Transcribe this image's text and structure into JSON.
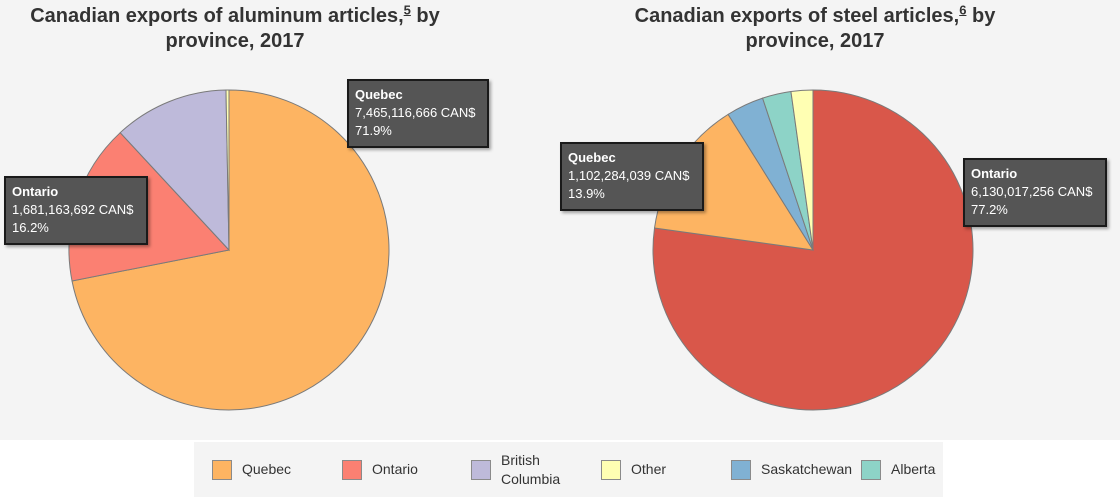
{
  "colors": {
    "quebec": "#fdb462",
    "ontario": "#fb8072",
    "ontario_steel": "#d9574a",
    "british_columbia": "#bebada",
    "other": "#ffffb3",
    "saskatchewan": "#80b1d3",
    "alberta": "#8dd3c7"
  },
  "chart_data": [
    {
      "type": "pie",
      "title": "Canadian exports of aluminum articles,",
      "title_footnote": "5",
      "title_suffix": " by",
      "title_line2": "province, 2017",
      "slices": [
        {
          "label": "Quebec",
          "value": 7465116666,
          "value_text": "7,465,116,666 CAN$",
          "percent": 71.9,
          "percent_text": "71.9%",
          "color": "#fdb462"
        },
        {
          "label": "Ontario",
          "value": 1681163692,
          "value_text": "1,681,163,692 CAN$",
          "percent": 16.2,
          "percent_text": "16.2%",
          "color": "#fb8072"
        },
        {
          "label": "British Columbia",
          "percent": 11.6,
          "color": "#bebada"
        },
        {
          "label": "Other",
          "percent": 0.3,
          "color": "#ffffb3"
        }
      ],
      "tooltips": [
        {
          "name": "Quebec",
          "value": "7,465,116,666 CAN$",
          "percent": "71.9%"
        },
        {
          "name": "Ontario",
          "value": "1,681,163,692 CAN$",
          "percent": "16.2%"
        }
      ]
    },
    {
      "type": "pie",
      "title": "Canadian exports of steel articles,",
      "title_footnote": "6",
      "title_suffix": " by",
      "title_line2": "province, 2017",
      "slices": [
        {
          "label": "Ontario",
          "value": 6130017256,
          "value_text": "6,130,017,256 CAN$",
          "percent": 77.2,
          "percent_text": "77.2%",
          "color": "#d9574a"
        },
        {
          "label": "Quebec",
          "value": 1102284039,
          "value_text": "1,102,284,039 CAN$",
          "percent": 13.9,
          "percent_text": "13.9%",
          "color": "#fdb462"
        },
        {
          "label": "Saskatchewan",
          "percent": 3.8,
          "color": "#80b1d3"
        },
        {
          "label": "Alberta",
          "percent": 2.9,
          "color": "#8dd3c7"
        },
        {
          "label": "Other",
          "percent": 2.2,
          "color": "#ffffb3"
        }
      ],
      "tooltips": [
        {
          "name": "Quebec",
          "value": "1,102,284,039 CAN$",
          "percent": "13.9%"
        },
        {
          "name": "Ontario",
          "value": "6,130,017,256 CAN$",
          "percent": "77.2%"
        }
      ]
    }
  ],
  "legend": [
    {
      "label": "Quebec",
      "color": "#fdb462"
    },
    {
      "label": "Ontario",
      "color": "#fb8072"
    },
    {
      "label_line1": "British",
      "label_line2": "Columbia",
      "color": "#bebada"
    },
    {
      "label": "Other",
      "color": "#ffffb3"
    },
    {
      "label": "Saskatchewan",
      "color": "#80b1d3"
    },
    {
      "label": "Alberta",
      "color": "#8dd3c7"
    }
  ]
}
